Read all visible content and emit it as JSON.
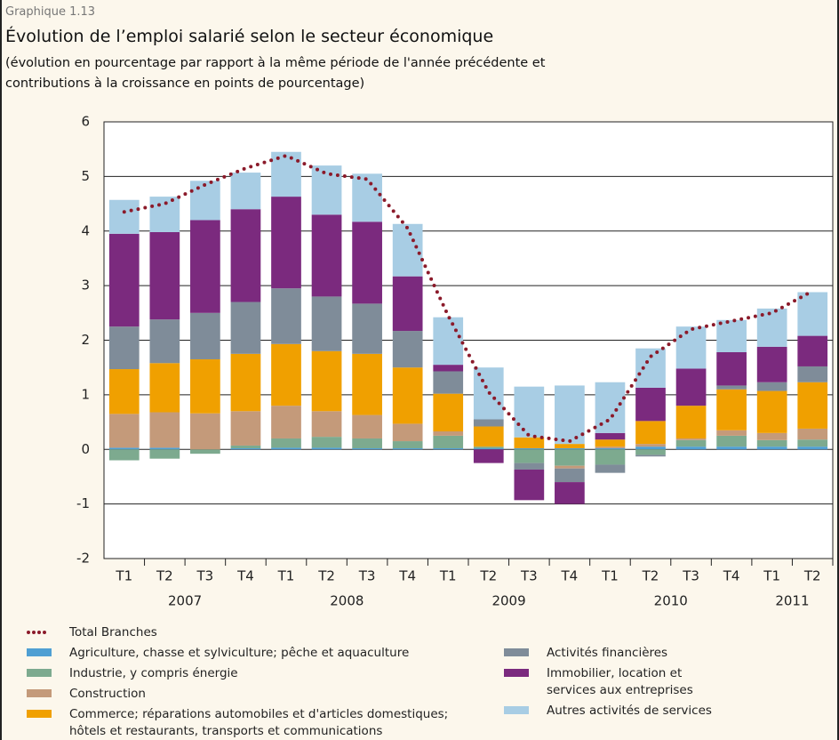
{
  "chart_data": {
    "type": "stacked_bar_line",
    "label": "Graphique 1.13",
    "title": "Évolution de l’emploi salarié selon le secteur économique",
    "subtitle": "(évolution en pourcentage par rapport à la même période de l'année précédente et\ncontributions à la croissance en points de pourcentage)",
    "categories": [
      "T1",
      "T2",
      "T3",
      "T4",
      "T1",
      "T2",
      "T3",
      "T4",
      "T1",
      "T2",
      "T3",
      "T4",
      "T1",
      "T2",
      "T3",
      "T4",
      "T1",
      "T2"
    ],
    "year_groups": [
      {
        "label": "2007",
        "span": 4
      },
      {
        "label": "2008",
        "span": 4
      },
      {
        "label": "2009",
        "span": 4
      },
      {
        "label": "2010",
        "span": 4
      },
      {
        "label": "2011",
        "span": 2
      }
    ],
    "ylim": [
      -2,
      6
    ],
    "yticks": [
      -2,
      -1,
      0,
      1,
      2,
      3,
      4,
      5,
      6
    ],
    "grid": true,
    "series": [
      {
        "name": "Agriculture, chasse et sylviculture; pêche et aquaculture",
        "color": "#4f9fd3",
        "column": 0,
        "values": [
          0.03,
          0.03,
          0,
          0.02,
          0.03,
          0.03,
          0.02,
          0.02,
          0.02,
          0.02,
          0.02,
          0.02,
          0.02,
          0.05,
          0.05,
          0.05,
          0.05,
          0.05
        ]
      },
      {
        "name": "Industrie, y compris énergie",
        "color": "#7daa8f",
        "column": 0,
        "values": [
          -0.2,
          -0.17,
          -0.08,
          0.05,
          0.17,
          0.2,
          0.18,
          0.13,
          0.23,
          0.03,
          -0.25,
          -0.3,
          -0.28,
          -0.1,
          0.12,
          0.2,
          0.12,
          0.13
        ]
      },
      {
        "name": "Construction",
        "color": "#c49a7a",
        "column": 0,
        "values": [
          0.62,
          0.65,
          0.66,
          0.63,
          0.6,
          0.47,
          0.43,
          0.32,
          0.08,
          0,
          0,
          -0.05,
          0.03,
          0.05,
          0.03,
          0.1,
          0.13,
          0.2
        ]
      },
      {
        "name": "Commerce; réparations automobiles et d'articles domestiques;\nhôtels et restaurants, transports et communications",
        "color": "#f0a000",
        "column": 0,
        "values": [
          0.82,
          0.9,
          0.99,
          1.05,
          1.13,
          1.1,
          1.12,
          1.03,
          0.69,
          0.37,
          0.2,
          0.08,
          0.13,
          0.42,
          0.6,
          0.75,
          0.77,
          0.85
        ]
      },
      {
        "name": "Activités financières",
        "color": "#7f8c99",
        "column": 1,
        "values": [
          0.78,
          0.8,
          0.85,
          0.95,
          1.02,
          1.0,
          0.92,
          0.67,
          0.41,
          0.13,
          -0.12,
          -0.25,
          -0.15,
          -0.03,
          0,
          0.07,
          0.16,
          0.29
        ]
      },
      {
        "name": "Immobilier, location et\nservices aux entreprises",
        "color": "#7b2a7e",
        "column": 1,
        "values": [
          1.7,
          1.6,
          1.7,
          1.7,
          1.68,
          1.5,
          1.5,
          1.0,
          0.12,
          -0.25,
          -0.56,
          -0.4,
          0.12,
          0.61,
          0.68,
          0.61,
          0.65,
          0.56
        ]
      },
      {
        "name": "Autres activités de services",
        "color": "#a8cde4",
        "column": 1,
        "values": [
          0.62,
          0.65,
          0.72,
          0.67,
          0.82,
          0.9,
          0.88,
          0.96,
          0.87,
          0.95,
          0.93,
          1.07,
          0.93,
          0.72,
          0.77,
          0.59,
          0.7,
          0.8
        ]
      }
    ],
    "line": {
      "name": "Total Branches",
      "color": "#8b1a2a",
      "values": [
        4.35,
        4.5,
        4.85,
        5.15,
        5.38,
        5.05,
        4.95,
        4.05,
        2.45,
        1.05,
        0.25,
        0.15,
        0.55,
        1.7,
        2.2,
        2.35,
        2.5,
        2.9
      ]
    }
  }
}
